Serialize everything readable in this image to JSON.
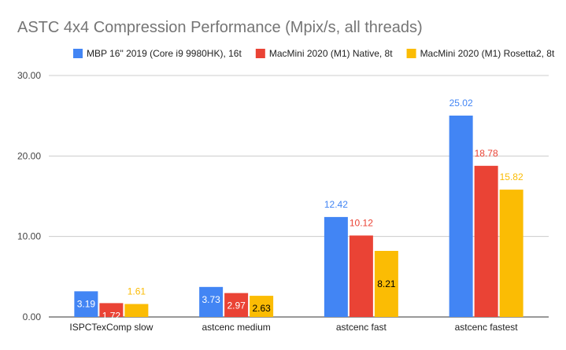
{
  "chart_data": {
    "type": "bar",
    "title": "ASTC 4x4 Compression Performance (Mpix/s, all threads)",
    "xlabel": "",
    "ylabel": "",
    "ylim": [
      0,
      30
    ],
    "yticks": [
      "0.00",
      "10.00",
      "20.00",
      "30.00"
    ],
    "grid": true,
    "legend_position": "top",
    "categories": [
      "ISPCTexComp slow",
      "astcenc medium",
      "astcenc fast",
      "astcenc fastest"
    ],
    "series": [
      {
        "name": "MBP 16\" 2019 (Core i9 9980HK), 16t",
        "color": "#4285f4",
        "values": [
          3.19,
          3.73,
          12.42,
          25.02
        ],
        "labels": [
          "3.19",
          "3.73",
          "12.42",
          "25.02"
        ]
      },
      {
        "name": "MacMini 2020 (M1) Native, 8t",
        "color": "#ea4335",
        "values": [
          1.72,
          2.97,
          10.12,
          18.78
        ],
        "labels": [
          "1.72",
          "2.97",
          "10.12",
          "18.78"
        ]
      },
      {
        "name": "MacMini 2020 (M1) Rosetta2, 8t",
        "color": "#fbbc04",
        "values": [
          1.61,
          2.63,
          8.21,
          15.82
        ],
        "labels": [
          "1.61",
          "2.63",
          "8.21",
          "15.82"
        ]
      }
    ]
  }
}
